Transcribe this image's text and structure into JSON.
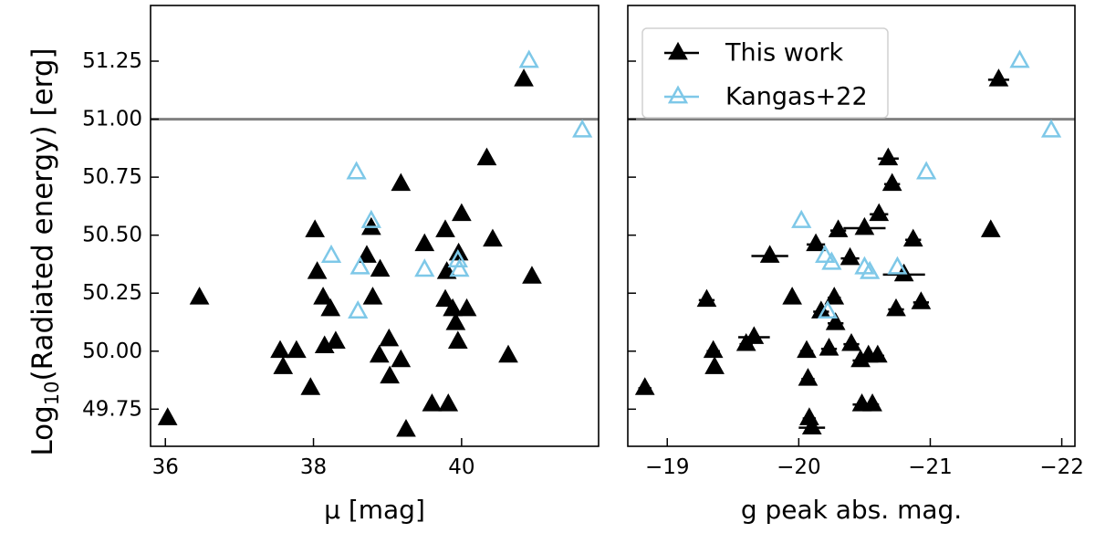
{
  "colors": {
    "this_work": "#000000",
    "kangas": "#7ec8e8",
    "reference_line": "#808080",
    "axes": "#000000"
  },
  "shared_ylabel": "Log10(Radiated energy) [erg]",
  "legend": {
    "placement": "top-left of right panel",
    "entries": [
      "This work",
      "Kangas+22"
    ]
  },
  "chart_data": [
    {
      "type": "scatter",
      "xlabel": "μ [mag]",
      "ylabel": "Log10(Radiated energy) [erg]",
      "xlim": [
        35.8,
        41.85
      ],
      "ylim": [
        49.59,
        51.49
      ],
      "x_ticks": [
        {
          "value": 36,
          "label": "36"
        },
        {
          "value": 38,
          "label": "38"
        },
        {
          "value": 40,
          "label": "40"
        }
      ],
      "y_ticks": [
        {
          "value": 49.75,
          "label": "49.75"
        },
        {
          "value": 50.0,
          "label": "50.00"
        },
        {
          "value": 50.25,
          "label": "50.25"
        },
        {
          "value": 50.5,
          "label": "50.50"
        },
        {
          "value": 50.75,
          "label": "50.75"
        },
        {
          "value": 51.0,
          "label": "51.00"
        },
        {
          "value": 51.25,
          "label": "51.25"
        }
      ],
      "reference_line": {
        "y": 51.0
      },
      "series": [
        {
          "name": "This work",
          "marker": "filled-triangle",
          "points": [
            [
              36.03,
              49.71
            ],
            [
              36.46,
              50.23
            ],
            [
              37.55,
              50.0
            ],
            [
              37.59,
              49.93
            ],
            [
              37.77,
              50.0
            ],
            [
              37.96,
              49.84
            ],
            [
              38.02,
              50.52
            ],
            [
              38.05,
              50.34
            ],
            [
              38.13,
              50.23
            ],
            [
              38.15,
              50.02
            ],
            [
              38.23,
              50.18
            ],
            [
              38.3,
              50.04
            ],
            [
              38.72,
              50.41
            ],
            [
              38.78,
              50.53
            ],
            [
              38.8,
              50.23
            ],
            [
              38.9,
              50.35
            ],
            [
              38.89,
              49.98
            ],
            [
              39.02,
              50.05
            ],
            [
              39.03,
              49.89
            ],
            [
              39.18,
              50.72
            ],
            [
              39.18,
              49.96
            ],
            [
              39.25,
              49.66
            ],
            [
              39.5,
              50.46
            ],
            [
              39.6,
              49.77
            ],
            [
              39.78,
              50.52
            ],
            [
              39.8,
              50.34
            ],
            [
              39.78,
              50.22
            ],
            [
              39.82,
              49.77
            ],
            [
              39.88,
              50.18
            ],
            [
              39.92,
              50.12
            ],
            [
              39.95,
              50.04
            ],
            [
              39.96,
              50.42
            ],
            [
              40.0,
              50.59
            ],
            [
              40.07,
              50.18
            ],
            [
              40.34,
              50.83
            ],
            [
              40.42,
              50.48
            ],
            [
              40.63,
              49.98
            ],
            [
              40.84,
              51.17
            ],
            [
              40.95,
              50.32
            ]
          ]
        },
        {
          "name": "Kangas+22",
          "marker": "hollow-triangle",
          "points": [
            [
              38.24,
              50.41
            ],
            [
              38.58,
              50.77
            ],
            [
              38.6,
              50.17
            ],
            [
              38.63,
              50.36
            ],
            [
              38.78,
              50.56
            ],
            [
              39.5,
              50.35
            ],
            [
              39.95,
              50.39
            ],
            [
              39.97,
              50.35
            ],
            [
              40.91,
              51.25
            ],
            [
              41.63,
              50.95
            ]
          ]
        }
      ]
    },
    {
      "type": "scatter",
      "xlabel": "g peak abs. mag.",
      "ylabel": "",
      "xlim": [
        -18.7,
        -22.1
      ],
      "ylim": [
        49.59,
        51.49
      ],
      "x_ticks": [
        {
          "value": -19,
          "label": "−19"
        },
        {
          "value": -20,
          "label": "−20"
        },
        {
          "value": -21,
          "label": "−21"
        },
        {
          "value": -22,
          "label": "−22"
        }
      ],
      "y_ticks": [
        {
          "value": 49.75,
          "label": ""
        },
        {
          "value": 50.0,
          "label": ""
        },
        {
          "value": 50.25,
          "label": ""
        },
        {
          "value": 50.5,
          "label": ""
        },
        {
          "value": 50.75,
          "label": ""
        },
        {
          "value": 51.0,
          "label": ""
        },
        {
          "value": 51.25,
          "label": ""
        }
      ],
      "reference_line": {
        "y": 51.0
      },
      "series": [
        {
          "name": "This work",
          "marker": "filled-triangle",
          "points": [
            [
              -18.83,
              49.84
            ],
            [
              -19.3,
              50.22
            ],
            [
              -19.35,
              50.0
            ],
            [
              -19.36,
              49.93
            ],
            [
              -19.6,
              50.03
            ],
            [
              -19.66,
              50.06
            ],
            [
              -19.78,
              50.41
            ],
            [
              -19.95,
              50.23
            ],
            [
              -20.06,
              50.0
            ],
            [
              -20.07,
              49.88
            ],
            [
              -20.08,
              49.71
            ],
            [
              -20.1,
              49.67
            ],
            [
              -20.13,
              50.46
            ],
            [
              -20.17,
              50.17
            ],
            [
              -20.27,
              50.23
            ],
            [
              -20.28,
              50.12
            ],
            [
              -20.23,
              50.01
            ],
            [
              -20.3,
              50.52
            ],
            [
              -20.39,
              50.4
            ],
            [
              -20.4,
              50.03
            ],
            [
              -20.47,
              49.96
            ],
            [
              -20.48,
              49.77
            ],
            [
              -20.5,
              50.53
            ],
            [
              -20.53,
              49.98
            ],
            [
              -20.56,
              49.77
            ],
            [
              -20.6,
              49.98
            ],
            [
              -20.61,
              50.59
            ],
            [
              -20.68,
              50.83
            ],
            [
              -20.71,
              50.72
            ],
            [
              -20.74,
              50.18
            ],
            [
              -20.8,
              50.33
            ],
            [
              -20.87,
              50.48
            ],
            [
              -20.93,
              50.21
            ],
            [
              -21.46,
              50.52
            ],
            [
              -21.52,
              51.17
            ]
          ],
          "x_err": [
            0.05,
            0.06,
            0.05,
            0.04,
            0.05,
            0.12,
            0.14,
            0.04,
            0.05,
            0.05,
            0.05,
            0.1,
            0.07,
            0.06,
            0.05,
            0.06,
            0.06,
            0.06,
            0.07,
            0.06,
            0.06,
            0.07,
            0.16,
            0.06,
            0.05,
            0.05,
            0.07,
            0.08,
            0.06,
            0.06,
            0.16,
            0.06,
            0.06,
            0.04,
            0.08
          ]
        },
        {
          "name": "Kangas+22",
          "marker": "hollow-triangle",
          "points": [
            [
              -20.02,
              50.56
            ],
            [
              -20.2,
              50.41
            ],
            [
              -20.25,
              50.38
            ],
            [
              -20.22,
              50.17
            ],
            [
              -20.5,
              50.36
            ],
            [
              -20.54,
              50.34
            ],
            [
              -20.75,
              50.36
            ],
            [
              -20.97,
              50.77
            ],
            [
              -21.68,
              51.25
            ],
            [
              -21.92,
              50.95
            ]
          ]
        }
      ]
    }
  ]
}
